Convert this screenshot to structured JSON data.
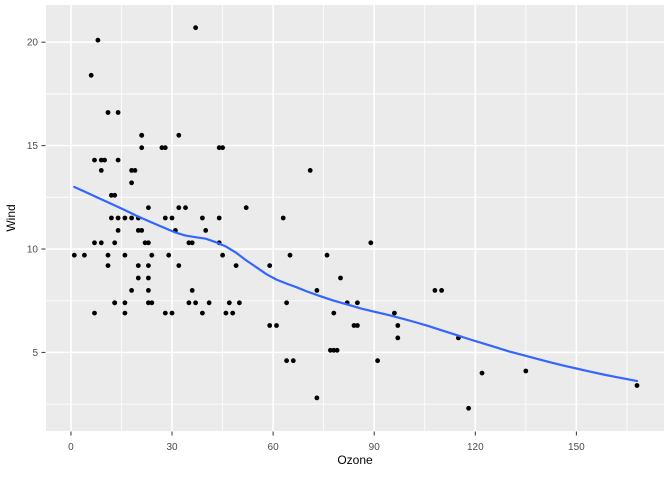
{
  "chart_data": {
    "type": "scatter",
    "title": "",
    "xlabel": "Ozone",
    "ylabel": "Wind",
    "legend": "none",
    "grid": "major+minor",
    "xlim": [
      -7.4,
      176.0
    ],
    "ylim": [
      1.2,
      21.8
    ],
    "x_ticks": [
      0,
      30,
      60,
      90,
      120,
      150
    ],
    "x_minor_ticks": [
      15,
      45,
      75,
      105,
      135,
      165
    ],
    "y_ticks": [
      5,
      10,
      15,
      20
    ],
    "y_minor_ticks": [
      2.5,
      7.5,
      12.5,
      17.5
    ],
    "colors": {
      "figure_bg": "#FFFFFF",
      "panel_bg": "#EBEBEB",
      "grid_major": "#FFFFFF",
      "grid_minor": "#FFFFFF",
      "point": "#000000",
      "smooth_line": "#3366FF",
      "axis_text": "#4D4D4D",
      "axis_title": "#000000",
      "tick_mark": "#333333"
    },
    "points": [
      [
        41,
        7.4
      ],
      [
        36,
        8
      ],
      [
        12,
        12.6
      ],
      [
        18,
        11.5
      ],
      [
        28,
        14.9
      ],
      [
        23,
        8.6
      ],
      [
        19,
        13.8
      ],
      [
        8,
        20.1
      ],
      [
        7,
        6.9
      ],
      [
        16,
        9.7
      ],
      [
        11,
        9.2
      ],
      [
        14,
        10.9
      ],
      [
        18,
        13.2
      ],
      [
        14,
        11.5
      ],
      [
        34,
        12
      ],
      [
        6,
        18.4
      ],
      [
        30,
        11.5
      ],
      [
        11,
        9.7
      ],
      [
        1,
        9.7
      ],
      [
        11,
        16.6
      ],
      [
        4,
        9.7
      ],
      [
        32,
        12
      ],
      [
        23,
        12
      ],
      [
        45,
        14.9
      ],
      [
        115,
        5.7
      ],
      [
        37,
        7.4
      ],
      [
        29,
        9.7
      ],
      [
        71,
        13.8
      ],
      [
        39,
        11.5
      ],
      [
        23,
        8
      ],
      [
        21,
        14.9
      ],
      [
        37,
        20.7
      ],
      [
        20,
        9.2
      ],
      [
        12,
        11.5
      ],
      [
        13,
        10.3
      ],
      [
        135,
        4.1
      ],
      [
        49,
        9.2
      ],
      [
        32,
        9.2
      ],
      [
        64,
        4.6
      ],
      [
        40,
        10.9
      ],
      [
        77,
        5.1
      ],
      [
        97,
        6.3
      ],
      [
        97,
        5.7
      ],
      [
        85,
        7.4
      ],
      [
        10,
        14.3
      ],
      [
        27,
        14.9
      ],
      [
        7,
        14.3
      ],
      [
        48,
        6.9
      ],
      [
        35,
        10.3
      ],
      [
        61,
        6.3
      ],
      [
        79,
        5.1
      ],
      [
        63,
        11.5
      ],
      [
        16,
        6.9
      ],
      [
        80,
        8.6
      ],
      [
        108,
        8
      ],
      [
        20,
        8.6
      ],
      [
        52,
        12
      ],
      [
        82,
        7.4
      ],
      [
        50,
        7.4
      ],
      [
        64,
        7.4
      ],
      [
        59,
        9.2
      ],
      [
        39,
        6.9
      ],
      [
        9,
        13.8
      ],
      [
        16,
        7.4
      ],
      [
        78,
        6.9
      ],
      [
        35,
        7.4
      ],
      [
        66,
        4.6
      ],
      [
        122,
        4
      ],
      [
        89,
        10.3
      ],
      [
        110,
        8
      ],
      [
        44,
        11.5
      ],
      [
        28,
        11.5
      ],
      [
        65,
        9.7
      ],
      [
        22,
        10.3
      ],
      [
        59,
        6.3
      ],
      [
        23,
        7.4
      ],
      [
        31,
        10.9
      ],
      [
        44,
        10.3
      ],
      [
        21,
        15.5
      ],
      [
        9,
        14.3
      ],
      [
        45,
        9.7
      ],
      [
        168,
        3.4
      ],
      [
        73,
        8
      ],
      [
        76,
        9.7
      ],
      [
        118,
        2.3
      ],
      [
        84,
        6.3
      ],
      [
        85,
        6.3
      ],
      [
        96,
        6.9
      ],
      [
        78,
        5.1
      ],
      [
        73,
        2.8
      ],
      [
        91,
        4.6
      ],
      [
        47,
        7.4
      ],
      [
        32,
        15.5
      ],
      [
        20,
        10.9
      ],
      [
        23,
        10.3
      ],
      [
        21,
        10.9
      ],
      [
        24,
        9.7
      ],
      [
        44,
        14.9
      ],
      [
        21,
        15.5
      ],
      [
        28,
        6.9
      ],
      [
        9,
        10.3
      ],
      [
        13,
        7.4
      ],
      [
        46,
        6.9
      ],
      [
        18,
        13.8
      ],
      [
        13,
        7.4
      ],
      [
        24,
        7.4
      ],
      [
        16,
        11.5
      ],
      [
        13,
        12.6
      ],
      [
        23,
        9.2
      ],
      [
        36,
        10.3
      ],
      [
        7,
        10.3
      ],
      [
        14,
        16.6
      ],
      [
        30,
        6.9
      ],
      [
        14,
        14.3
      ],
      [
        18,
        8
      ],
      [
        20,
        11.5
      ]
    ],
    "smooth_line": [
      [
        1,
        13.0
      ],
      [
        4,
        12.78
      ],
      [
        8,
        12.48
      ],
      [
        12,
        12.18
      ],
      [
        16,
        11.88
      ],
      [
        20,
        11.57
      ],
      [
        24,
        11.28
      ],
      [
        28,
        11.0
      ],
      [
        31,
        10.8
      ],
      [
        34,
        10.65
      ],
      [
        37,
        10.57
      ],
      [
        40,
        10.5
      ],
      [
        43,
        10.33
      ],
      [
        46,
        10.12
      ],
      [
        49,
        9.82
      ],
      [
        52,
        9.45
      ],
      [
        55,
        9.12
      ],
      [
        58,
        8.78
      ],
      [
        61,
        8.52
      ],
      [
        64,
        8.33
      ],
      [
        67,
        8.15
      ],
      [
        70,
        7.95
      ],
      [
        74,
        7.72
      ],
      [
        78,
        7.5
      ],
      [
        82,
        7.32
      ],
      [
        86,
        7.13
      ],
      [
        90,
        6.97
      ],
      [
        94,
        6.82
      ],
      [
        98,
        6.65
      ],
      [
        102,
        6.47
      ],
      [
        106,
        6.28
      ],
      [
        110,
        6.07
      ],
      [
        114,
        5.86
      ],
      [
        118,
        5.65
      ],
      [
        122,
        5.45
      ],
      [
        126,
        5.25
      ],
      [
        130,
        5.05
      ],
      [
        134,
        4.88
      ],
      [
        138,
        4.7
      ],
      [
        142,
        4.53
      ],
      [
        146,
        4.37
      ],
      [
        150,
        4.22
      ],
      [
        154,
        4.07
      ],
      [
        158,
        3.93
      ],
      [
        162,
        3.8
      ],
      [
        165,
        3.71
      ],
      [
        168,
        3.62
      ]
    ]
  }
}
